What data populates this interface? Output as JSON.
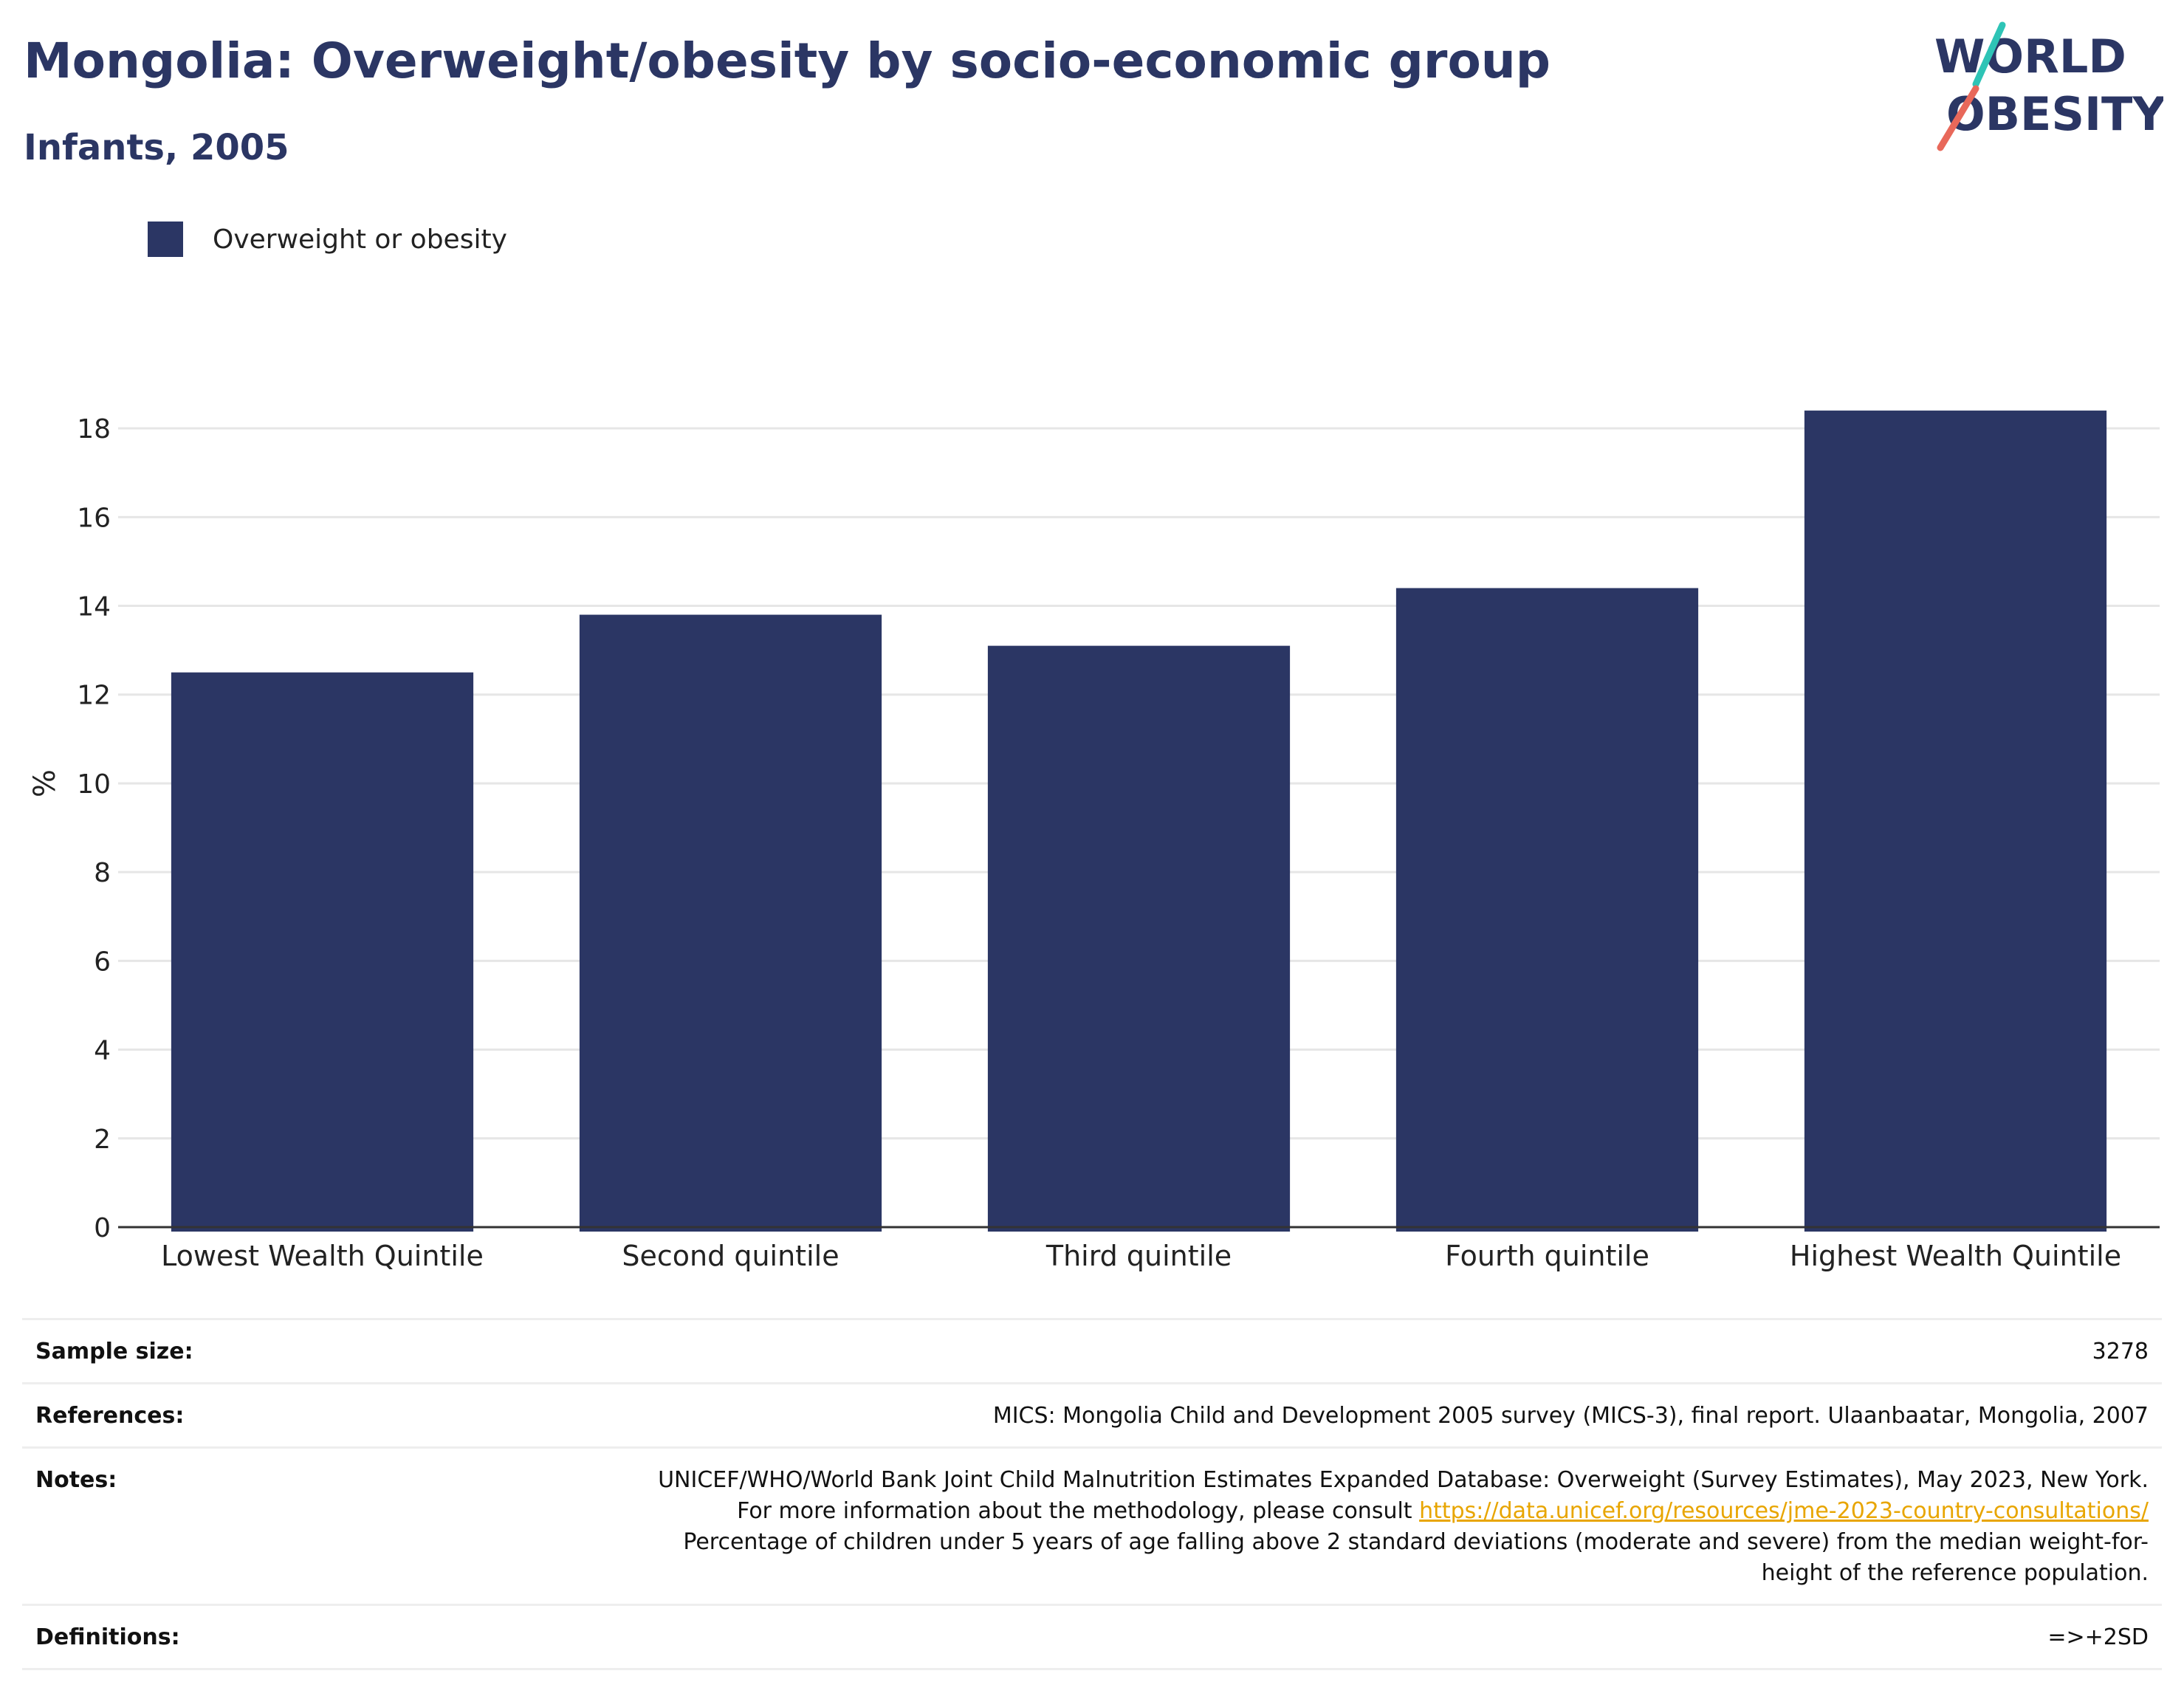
{
  "header": {
    "title": "Mongolia: Overweight/obesity by socio-economic group",
    "subtitle": "Infants, 2005"
  },
  "logo": {
    "line1": "WORLD",
    "line2": "OBESITY",
    "colors": {
      "text": "#2b3664",
      "slash_top": "#2ec4b6",
      "slash_bottom": "#e8685a"
    }
  },
  "legend": {
    "label": "Overweight or obesity",
    "color": "#2b3664"
  },
  "chart_data": {
    "type": "bar",
    "categories": [
      "Lowest Wealth Quintile",
      "Second quintile",
      "Third quintile",
      "Fourth quintile",
      "Highest Wealth Quintile"
    ],
    "series": [
      {
        "name": "Overweight or obesity",
        "values": [
          12.5,
          13.8,
          13.1,
          14.4,
          18.4
        ],
        "color": "#2b3664"
      }
    ],
    "ylabel": "%",
    "ylim": [
      0,
      19
    ],
    "yticks": [
      0,
      2,
      4,
      6,
      8,
      10,
      12,
      14,
      16,
      18
    ],
    "grid": true
  },
  "info": [
    {
      "label": "Sample size:",
      "value": "3278"
    },
    {
      "label": "References:",
      "value": "MICS: Mongolia Child and Development 2005 survey (MICS-3), final report. Ulaanbaatar, Mongolia, 2007"
    },
    {
      "label": "Notes:",
      "value_before": "UNICEF/WHO/World Bank Joint Child Malnutrition Estimates Expanded Database: Overweight (Survey Estimates), May 2023, New York. For more information about the methodology, please consult ",
      "link": "https://data.unicef.org/resources/jme-2023-country-consultations/",
      "value_after": " Percentage of children under 5 years of age falling above 2 standard deviations (moderate and severe) from the median weight-for-height of the reference population."
    },
    {
      "label": "Definitions:",
      "value": "=>+2SD"
    }
  ]
}
